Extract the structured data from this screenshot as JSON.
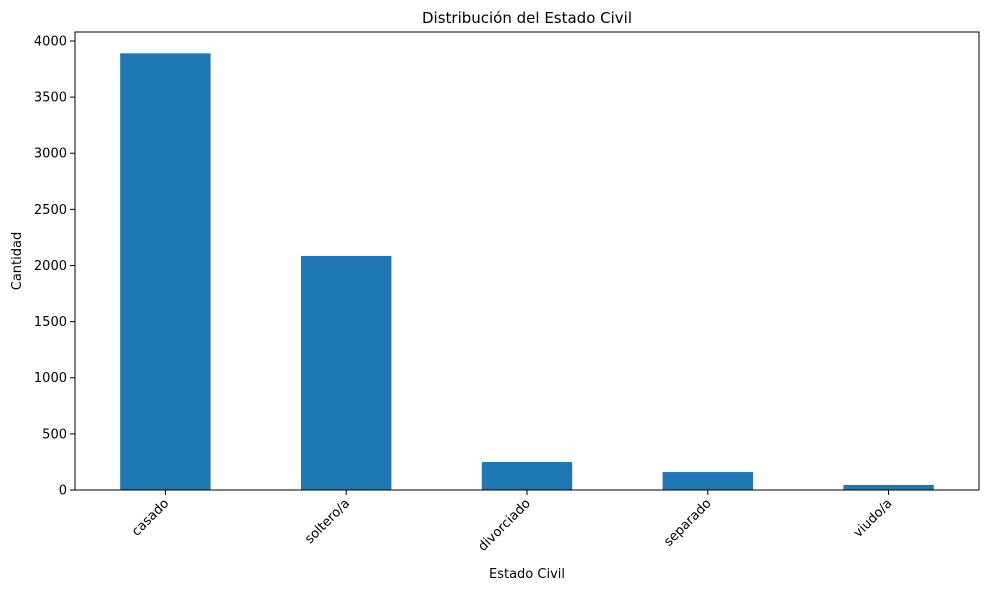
{
  "chart_data": {
    "type": "bar",
    "title": "Distribución del Estado Civil",
    "xlabel": "Estado Civil",
    "ylabel": "Cantidad",
    "categories": [
      "casado",
      "soltero/a",
      "divorciado",
      "separado",
      "viudo/a"
    ],
    "values": [
      3890,
      2085,
      250,
      160,
      45
    ],
    "ylim": [
      0,
      4080
    ],
    "yticks": [
      0,
      500,
      1000,
      1500,
      2000,
      2500,
      3000,
      3500,
      4000
    ],
    "bar_color": "#1f77b4",
    "grid": false,
    "legend": "none",
    "xtick_rotation": "45 degrees"
  }
}
